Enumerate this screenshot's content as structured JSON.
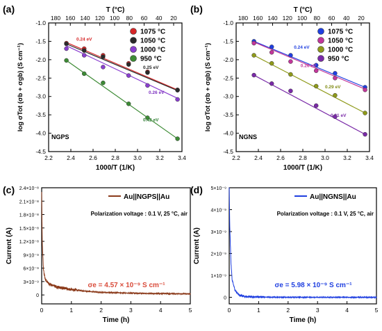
{
  "chart_data": [
    {
      "panel": "(a)",
      "type": "scatter",
      "xlabel": "1000/T (1/K)",
      "ylabel": "log σTot (σb + σgb) (S cm⁻¹)",
      "top_axis_label": "T (°C)",
      "top_ticks": [
        "180",
        "160",
        "140",
        "120",
        "100",
        "80",
        "60",
        "40",
        "20"
      ],
      "xlim": [
        2.2,
        3.4
      ],
      "ylim": [
        -4.5,
        -1.0
      ],
      "xticks": [
        "2.2",
        "2.4",
        "2.6",
        "2.8",
        "3.0",
        "3.2",
        "3.4"
      ],
      "yticks": [
        "-1.0",
        "-1.5",
        "-2.0",
        "-2.5",
        "-3.0",
        "-3.5",
        "-4.0",
        "-4.5"
      ],
      "legend_position": "top-right",
      "sample_label": "NGPS",
      "series": [
        {
          "name": "1075 °C",
          "color": "#d62728",
          "x": [
            2.36,
            2.52,
            2.69,
            2.92,
            3.09,
            3.36
          ],
          "y": [
            -1.55,
            -1.7,
            -1.88,
            -2.1,
            -2.33,
            -2.82
          ],
          "fit": [
            [
              2.36,
              -1.53
            ],
            [
              3.36,
              -2.82
            ]
          ],
          "ea": "0.24 eV",
          "ea_color": "#d62728"
        },
        {
          "name": "1050 °C",
          "color": "#2a2a2a",
          "x": [
            2.36,
            2.52,
            2.69,
            2.92,
            3.09,
            3.36
          ],
          "y": [
            -1.57,
            -1.75,
            -1.92,
            -2.13,
            -2.35,
            -2.83
          ],
          "fit": [
            [
              2.36,
              -1.57
            ],
            [
              3.36,
              -2.84
            ]
          ],
          "ea": "0.25 eV",
          "ea_color": "#222222"
        },
        {
          "name": "1000 °C",
          "color": "#8a3fcf",
          "x": [
            2.36,
            2.52,
            2.69,
            2.92,
            3.09,
            3.36
          ],
          "y": [
            -1.7,
            -1.88,
            -2.2,
            -2.43,
            -2.7,
            -3.08
          ],
          "fit": [
            [
              2.36,
              -1.62
            ],
            [
              3.36,
              -3.05
            ]
          ],
          "ea": "0.26 eV",
          "ea_color": "#7b2fbf"
        },
        {
          "name": "950 °C",
          "color": "#3d8b35",
          "x": [
            2.36,
            2.52,
            2.69,
            2.92,
            3.09,
            3.36
          ],
          "y": [
            -2.02,
            -2.38,
            -2.63,
            -3.2,
            -3.58,
            -4.15
          ],
          "fit": [
            [
              2.36,
              -2.02
            ],
            [
              3.36,
              -4.15
            ]
          ],
          "ea": "0.42 eV",
          "ea_color": "#2e7d32"
        }
      ]
    },
    {
      "panel": "(b)",
      "type": "scatter",
      "xlabel": "1000/T (1/K)",
      "ylabel": "log σTot (σb + σgb) (S cm⁻¹)",
      "top_axis_label": "T (°C)",
      "top_ticks": [
        "180",
        "160",
        "140",
        "120",
        "100",
        "80",
        "60",
        "40",
        "20"
      ],
      "xlim": [
        2.2,
        3.4
      ],
      "ylim": [
        -4.5,
        -1.0
      ],
      "xticks": [
        "2.2",
        "2.4",
        "2.6",
        "2.8",
        "3.0",
        "3.2",
        "3.4"
      ],
      "yticks": [
        "-1.0",
        "-1.5",
        "-2.0",
        "-2.5",
        "-3.0",
        "-3.5",
        "-4.0",
        "-4.5"
      ],
      "legend_position": "top-right",
      "sample_label": "NGNS",
      "series": [
        {
          "name": "1075 °C",
          "color": "#1f3fe0",
          "x": [
            2.36,
            2.52,
            2.69,
            2.92,
            3.09,
            3.36
          ],
          "y": [
            -1.5,
            -1.65,
            -1.88,
            -2.15,
            -2.37,
            -2.75
          ],
          "fit": [
            [
              2.36,
              -1.5
            ],
            [
              3.36,
              -2.75
            ]
          ],
          "ea": "0.24 eV",
          "ea_color": "#1f3fe0"
        },
        {
          "name": "1050 °C",
          "color": "#c2369a",
          "x": [
            2.36,
            2.52,
            2.69,
            2.92,
            3.09,
            3.36
          ],
          "y": [
            -1.55,
            -1.8,
            -2.05,
            -2.3,
            -2.5,
            -2.82
          ],
          "fit": [
            [
              2.36,
              -1.52
            ],
            [
              3.36,
              -2.8
            ]
          ],
          "ea": "0.26 eV",
          "ea_color": "#c2369a"
        },
        {
          "name": "1000 °C",
          "color": "#8f9a1a",
          "x": [
            2.36,
            2.52,
            2.69,
            2.92,
            3.09,
            3.36
          ],
          "y": [
            -1.88,
            -2.1,
            -2.4,
            -2.72,
            -2.97,
            -3.45
          ],
          "fit": [
            [
              2.36,
              -1.88
            ],
            [
              3.36,
              -3.45
            ]
          ],
          "ea": "0.29 eV",
          "ea_color": "#7f8a12"
        },
        {
          "name": "950 °C",
          "color": "#7a2aa8",
          "x": [
            2.36,
            2.52,
            2.69,
            2.92,
            3.09,
            3.36
          ],
          "y": [
            -2.42,
            -2.65,
            -2.85,
            -3.25,
            -3.55,
            -4.03
          ],
          "fit": [
            [
              2.36,
              -2.42
            ],
            [
              3.36,
              -4.03
            ]
          ],
          "ea": "0.31 eV",
          "ea_color": "#7a2aa8"
        }
      ]
    },
    {
      "panel": "(c)",
      "type": "line",
      "xlabel": "Time (h)",
      "ylabel": "Current (A)",
      "xlim": [
        0,
        5
      ],
      "ylim": [
        -2e-09,
        2.4e-08
      ],
      "xticks": [
        "0",
        "1",
        "2",
        "3",
        "4",
        "5"
      ],
      "yticks": [
        "0",
        "3×10⁻⁹",
        "6×10⁻⁹",
        "9×10⁻⁹",
        "1.2×10⁻⁸",
        "1.5×10⁻⁸",
        "1.8×10⁻⁸",
        "2.1×10⁻⁸",
        "2.4×10⁻⁸"
      ],
      "legend_position": "top-right",
      "annotation": "Polarization voltage : 0.1 V, 25 °C, air",
      "conductivity_label": "σe = 4.57 × 10⁻⁹ S cm⁻¹",
      "series": [
        {
          "name": "Au||NGPS||Au",
          "color": "#8b3a1a",
          "peak": 2.3e-08,
          "decay": [
            [
              0,
              2.3e-08
            ],
            [
              0.02,
              1.2e-08
            ],
            [
              0.06,
              5.5e-09
            ],
            [
              0.12,
              3.5e-09
            ],
            [
              0.25,
              2.5e-09
            ],
            [
              0.5,
              1.8e-09
            ],
            [
              1,
              1.2e-09
            ],
            [
              1.5,
              8e-10
            ],
            [
              2,
              6e-10
            ],
            [
              3,
              4e-10
            ],
            [
              4,
              3e-10
            ],
            [
              5,
              2.5e-10
            ]
          ]
        }
      ]
    },
    {
      "panel": "(d)",
      "type": "line",
      "xlabel": "Time (h)",
      "ylabel": "Current (A)",
      "xlim": [
        0,
        5
      ],
      "ylim": [
        -3e-10,
        5e-09
      ],
      "xticks": [
        "0",
        "1",
        "2",
        "3",
        "4",
        "5"
      ],
      "yticks": [
        "0",
        "1×10⁻⁹",
        "2×10⁻⁹",
        "3×10⁻⁹",
        "4×10⁻⁹",
        "5×10⁻⁹"
      ],
      "legend_position": "top-right",
      "annotation": "Polarization voltage : 0.1 V, 25 °C, air",
      "conductivity_label": "σe = 5.98 × 10⁻⁹ S cm⁻¹",
      "series": [
        {
          "name": "Au||NGNS||Au",
          "color": "#1f3fe0",
          "peak": 5e-09,
          "decay": [
            [
              0,
              5e-09
            ],
            [
              0.02,
              3.2e-09
            ],
            [
              0.06,
              1.6e-09
            ],
            [
              0.1,
              8e-10
            ],
            [
              0.2,
              3e-10
            ],
            [
              0.35,
              1e-10
            ],
            [
              0.6,
              3e-11
            ],
            [
              1,
              1e-11
            ],
            [
              2,
              0
            ],
            [
              3,
              0
            ],
            [
              4,
              0
            ],
            [
              5,
              0
            ]
          ]
        }
      ]
    }
  ]
}
